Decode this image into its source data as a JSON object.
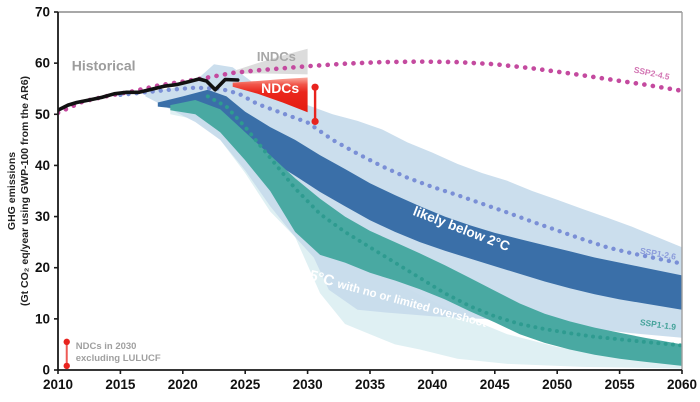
{
  "axes": {
    "x_ticks": [
      2010,
      2015,
      2020,
      2025,
      2030,
      2035,
      2040,
      2045,
      2050,
      2055,
      2060
    ],
    "y_ticks": [
      0,
      10,
      20,
      30,
      40,
      50,
      60,
      70
    ],
    "x_range": [
      2010,
      2060
    ],
    "y_range": [
      0,
      70
    ],
    "y_title_line1": "GHG emissions",
    "y_title_line2": "(Gt CO₂ eq/year using GWP-100 from the AR6)"
  },
  "chart_data": {
    "type": "area",
    "title": "",
    "xlabel": "",
    "ylabel": "GHG emissions (Gt CO2 eq/year using GWP-100 from the AR6)",
    "xlim": [
      2010,
      2060
    ],
    "ylim": [
      0,
      70
    ],
    "bands": [
      {
        "name": "1.5C-full-range",
        "color": "#dff0f3",
        "opacity": 1,
        "top": [
          [
            2019,
            51
          ],
          [
            2021,
            52.5
          ],
          [
            2023,
            51
          ],
          [
            2025,
            46
          ],
          [
            2027,
            40
          ],
          [
            2029,
            34
          ],
          [
            2031,
            28
          ],
          [
            2034,
            22
          ],
          [
            2038,
            16
          ],
          [
            2042,
            11
          ],
          [
            2046,
            7
          ],
          [
            2050,
            4.5
          ],
          [
            2055,
            2.5
          ],
          [
            2060,
            1.5
          ]
        ],
        "bottom": [
          [
            2019,
            50
          ],
          [
            2021,
            49
          ],
          [
            2023,
            45
          ],
          [
            2025,
            38.5
          ],
          [
            2027,
            31
          ],
          [
            2029,
            26
          ],
          [
            2031,
            15
          ],
          [
            2033,
            9
          ],
          [
            2035,
            7
          ],
          [
            2037,
            5
          ],
          [
            2039,
            4
          ],
          [
            2042,
            2.2
          ],
          [
            2046,
            1.2
          ],
          [
            2052,
            0.6
          ],
          [
            2060,
            0.3
          ]
        ]
      },
      {
        "name": "2C-full-range",
        "color": "#c7dbec",
        "opacity": 0.92,
        "top": [
          [
            2017,
            54.5
          ],
          [
            2019,
            55
          ],
          [
            2021,
            56.5
          ],
          [
            2022.5,
            59.8
          ],
          [
            2024,
            59.2
          ],
          [
            2026,
            55.5
          ],
          [
            2028,
            53.5
          ],
          [
            2030,
            51.8
          ],
          [
            2032,
            50
          ],
          [
            2034,
            48.7
          ],
          [
            2036,
            47
          ],
          [
            2038,
            44.5
          ],
          [
            2040,
            42.5
          ],
          [
            2042,
            40.3
          ],
          [
            2044,
            38.5
          ],
          [
            2046,
            37
          ],
          [
            2048,
            35
          ],
          [
            2050,
            33.3
          ],
          [
            2052,
            31.5
          ],
          [
            2054,
            29.8
          ],
          [
            2056,
            28
          ],
          [
            2058,
            26
          ],
          [
            2060,
            24
          ]
        ],
        "bottom": [
          [
            2017,
            53.5
          ],
          [
            2019,
            51
          ],
          [
            2021,
            48.5
          ],
          [
            2023,
            45
          ],
          [
            2025,
            39
          ],
          [
            2027,
            32
          ],
          [
            2029,
            26
          ],
          [
            2030.5,
            22
          ],
          [
            2031.7,
            15.7
          ],
          [
            2034,
            11.8
          ],
          [
            2036,
            11.3
          ],
          [
            2040,
            10.5
          ],
          [
            2044,
            10
          ],
          [
            2048,
            9.2
          ],
          [
            2052,
            8.3
          ],
          [
            2056,
            7.2
          ],
          [
            2060,
            6.3
          ]
        ]
      },
      {
        "name": "likely-below-2C",
        "color": "#3a6fa8",
        "opacity": 1,
        "top": [
          [
            2018,
            52.3
          ],
          [
            2020,
            53.5
          ],
          [
            2022,
            54.8
          ],
          [
            2023.5,
            53.5
          ],
          [
            2025,
            50.5
          ],
          [
            2027,
            47.5
          ],
          [
            2029,
            45
          ],
          [
            2031,
            42
          ],
          [
            2033,
            39.3
          ],
          [
            2035,
            36.5
          ],
          [
            2037,
            34.2
          ],
          [
            2039,
            32
          ],
          [
            2041,
            30
          ],
          [
            2043,
            28.3
          ],
          [
            2045,
            26.8
          ],
          [
            2047,
            25.6
          ],
          [
            2049,
            24.4
          ],
          [
            2051,
            23.2
          ],
          [
            2053,
            22
          ],
          [
            2055,
            21
          ],
          [
            2057,
            20
          ],
          [
            2060,
            18.5
          ]
        ],
        "bottom": [
          [
            2018,
            51.5
          ],
          [
            2020,
            51
          ],
          [
            2022,
            50
          ],
          [
            2023.5,
            48
          ],
          [
            2025,
            44.5
          ],
          [
            2027,
            41
          ],
          [
            2029,
            38
          ],
          [
            2031,
            34.8
          ],
          [
            2033,
            32
          ],
          [
            2035,
            29.3
          ],
          [
            2037,
            27
          ],
          [
            2039,
            25
          ],
          [
            2041,
            23.3
          ],
          [
            2043,
            21.8
          ],
          [
            2045,
            20.3
          ],
          [
            2047,
            18.8
          ],
          [
            2049,
            17.3
          ],
          [
            2051,
            16
          ],
          [
            2053,
            14.8
          ],
          [
            2055,
            13.8
          ],
          [
            2057,
            13
          ],
          [
            2060,
            11.8
          ]
        ]
      },
      {
        "name": "1.5C-no-limited-overshoot",
        "color": "#49a9a2",
        "opacity": 1,
        "top": [
          [
            2019,
            51.8
          ],
          [
            2021,
            52.8
          ],
          [
            2023,
            51
          ],
          [
            2025,
            46.5
          ],
          [
            2027,
            42
          ],
          [
            2029,
            37.5
          ],
          [
            2031,
            33.5
          ],
          [
            2033,
            30
          ],
          [
            2035,
            27.2
          ],
          [
            2037,
            25
          ],
          [
            2039,
            22.8
          ],
          [
            2041,
            20.5
          ],
          [
            2043,
            18
          ],
          [
            2045,
            15.5
          ],
          [
            2047,
            13
          ],
          [
            2049,
            11
          ],
          [
            2051,
            9.5
          ],
          [
            2053,
            8.3
          ],
          [
            2055,
            7.3
          ],
          [
            2057,
            6.3
          ],
          [
            2060,
            5
          ]
        ],
        "bottom": [
          [
            2019,
            50.8
          ],
          [
            2021,
            50
          ],
          [
            2023,
            46.5
          ],
          [
            2025,
            41
          ],
          [
            2027,
            35
          ],
          [
            2029,
            27
          ],
          [
            2031,
            22.5
          ],
          [
            2033,
            21
          ],
          [
            2035,
            19
          ],
          [
            2037,
            17.5
          ],
          [
            2039,
            15.8
          ],
          [
            2041,
            13.8
          ],
          [
            2043,
            11.5
          ],
          [
            2045,
            9.3
          ],
          [
            2047,
            7
          ],
          [
            2049,
            5.3
          ],
          [
            2051,
            4
          ],
          [
            2053,
            3
          ],
          [
            2055,
            2.2
          ],
          [
            2057,
            1.6
          ],
          [
            2060,
            0.8
          ]
        ]
      }
    ],
    "wedges": [
      {
        "name": "INDCs",
        "fill": "#dcdcdc",
        "top": [
          [
            2024.1,
            58.5
          ],
          [
            2026,
            60
          ],
          [
            2028,
            61.5
          ],
          [
            2030,
            62.8
          ]
        ],
        "bottom": [
          [
            2024.1,
            57.9
          ],
          [
            2026,
            58
          ],
          [
            2028,
            57.9
          ],
          [
            2030,
            57.8
          ]
        ]
      },
      {
        "name": "NDCs",
        "fill": "gradient-red",
        "top": [
          [
            2024,
            56.2
          ],
          [
            2026,
            56.5
          ],
          [
            2028,
            56.9
          ],
          [
            2030,
            57.2
          ]
        ],
        "bottom": [
          [
            2024,
            55.4
          ],
          [
            2026,
            54
          ],
          [
            2028,
            52.3
          ],
          [
            2030,
            50.4
          ]
        ]
      }
    ],
    "dotted_lines": [
      {
        "name": "SSP2-4.5",
        "color": "#c44a9f",
        "dot_width": 4.6,
        "dot_gap": 8.5,
        "points": [
          [
            2010,
            50.3
          ],
          [
            2012,
            52.5
          ],
          [
            2014,
            53.6
          ],
          [
            2016,
            54.5
          ],
          [
            2018,
            55.6
          ],
          [
            2020,
            56.4
          ],
          [
            2022,
            57.2
          ],
          [
            2024,
            58.1
          ],
          [
            2026,
            58.6
          ],
          [
            2028,
            59
          ],
          [
            2030,
            59.4
          ],
          [
            2033,
            59.9
          ],
          [
            2036,
            60.2
          ],
          [
            2039,
            60.3
          ],
          [
            2042,
            60.2
          ],
          [
            2045,
            59.8
          ],
          [
            2048,
            59
          ],
          [
            2051,
            58
          ],
          [
            2054,
            56.9
          ],
          [
            2057,
            55.8
          ],
          [
            2060,
            54.6
          ]
        ]
      },
      {
        "name": "SSP1-2.6",
        "color": "#7a8fd6",
        "dot_width": 4.3,
        "dot_gap": 8,
        "points": [
          [
            2015,
            53.8
          ],
          [
            2017,
            54.3
          ],
          [
            2019,
            54.8
          ],
          [
            2021,
            55.2
          ],
          [
            2023,
            55
          ],
          [
            2024.5,
            54
          ],
          [
            2026,
            52
          ],
          [
            2028,
            50.2
          ],
          [
            2030,
            48.4
          ],
          [
            2032,
            45
          ],
          [
            2034,
            42.3
          ],
          [
            2036,
            39.8
          ],
          [
            2038,
            37.6
          ],
          [
            2040,
            35.8
          ],
          [
            2042,
            34.2
          ],
          [
            2044,
            32.5
          ],
          [
            2046,
            30.8
          ],
          [
            2048,
            29
          ],
          [
            2050,
            27.3
          ],
          [
            2052,
            25.6
          ],
          [
            2054,
            24
          ],
          [
            2056,
            22.8
          ],
          [
            2058,
            21.8
          ],
          [
            2060,
            20.8
          ]
        ]
      },
      {
        "name": "SSP1-1.9",
        "color": "#2e9b90",
        "dot_width": 3.9,
        "dot_gap": 7.2,
        "points": [
          [
            2022,
            53.5
          ],
          [
            2023.5,
            51.5
          ],
          [
            2025,
            47.5
          ],
          [
            2027,
            41.5
          ],
          [
            2029,
            35.5
          ],
          [
            2031,
            30.5
          ],
          [
            2033,
            27
          ],
          [
            2035,
            24
          ],
          [
            2037,
            21
          ],
          [
            2039,
            18
          ],
          [
            2041,
            15
          ],
          [
            2043,
            12.5
          ],
          [
            2045,
            10.5
          ],
          [
            2047,
            9
          ],
          [
            2049,
            8
          ],
          [
            2051,
            7.2
          ],
          [
            2053,
            6.5
          ],
          [
            2055,
            6
          ],
          [
            2057,
            5.5
          ],
          [
            2060,
            4.8
          ]
        ]
      }
    ],
    "historical": {
      "label": "Historical",
      "color": "#111111",
      "points": [
        [
          2010,
          50.8
        ],
        [
          2010.8,
          51.8
        ],
        [
          2011.5,
          52.3
        ],
        [
          2012.5,
          52.8
        ],
        [
          2013.5,
          53.3
        ],
        [
          2014.5,
          54
        ],
        [
          2015.5,
          54.3
        ],
        [
          2016.5,
          54.3
        ],
        [
          2017.5,
          54.9
        ],
        [
          2018.5,
          55.5
        ],
        [
          2019.5,
          55.8
        ],
        [
          2020.5,
          56.4
        ],
        [
          2021.3,
          56.9
        ],
        [
          2021.9,
          56.5
        ],
        [
          2022.6,
          54.8
        ],
        [
          2023.4,
          56.8
        ],
        [
          2024.4,
          56.7
        ]
      ]
    },
    "errorbar_2030": {
      "x_year": 2030.6,
      "top": 55.3,
      "bottom": 48.6,
      "color": "#e8231e"
    },
    "annotations": [
      {
        "id": "historical-label",
        "text": "Historical",
        "x_year": 2011.1,
        "y_val": 58.6,
        "rotate": 0,
        "size": 14,
        "weight": 700,
        "color": "#9c9c9c",
        "anchor": "start"
      },
      {
        "id": "indcs-label",
        "text": "INDCs",
        "x_year": 2027.5,
        "y_val": 60.4,
        "rotate": 0,
        "size": 13,
        "weight": 700,
        "color": "#a8a8a8",
        "anchor": "middle"
      },
      {
        "id": "ndcs-label",
        "text": "NDCs",
        "x_year": 2027.8,
        "y_val": 54.2,
        "rotate": 0,
        "size": 14,
        "weight": 700,
        "color": "#ffffff",
        "anchor": "middle"
      },
      {
        "id": "likely-2c-label",
        "text": "likely below 2°C",
        "x_year": 2042.2,
        "y_val": 26.8,
        "rotate": 21,
        "size": 13.5,
        "weight": 600,
        "color": "#ffffff",
        "anchor": "middle"
      },
      {
        "id": "ssp245-label",
        "text": "SSP2-4.5",
        "x_year": 2056.1,
        "y_val": 58.2,
        "rotate": 12,
        "size": 8.5,
        "weight": 600,
        "color": "#d377b4",
        "anchor": "start"
      },
      {
        "id": "ssp126-label",
        "text": "SSP1-2.6",
        "x_year": 2056.6,
        "y_val": 22.8,
        "rotate": 10,
        "size": 8.5,
        "weight": 600,
        "color": "#8c9cdb",
        "anchor": "start"
      },
      {
        "id": "ssp119-label",
        "text": "SSP1-1.9",
        "x_year": 2056.6,
        "y_val": 8.8,
        "rotate": 8,
        "size": 8.5,
        "weight": 600,
        "color": "#45a39a",
        "anchor": "start"
      }
    ],
    "overshoot_label": {
      "big": "1.5°C ",
      "rest": "with no or limited overshoot",
      "x_year": 2029.1,
      "y_val": 18.3,
      "rotate": 15,
      "big_size": 15,
      "rest_size": 11.5,
      "color": "#ffffff"
    },
    "legend": {
      "line1": "NDCs in 2030",
      "line2": "excluding LULUCF",
      "text_color": "#a0a0a0",
      "bar": {
        "x_year": 2010.7,
        "top": 5.5,
        "bottom": 0.8,
        "color": "#e8231e"
      }
    }
  }
}
